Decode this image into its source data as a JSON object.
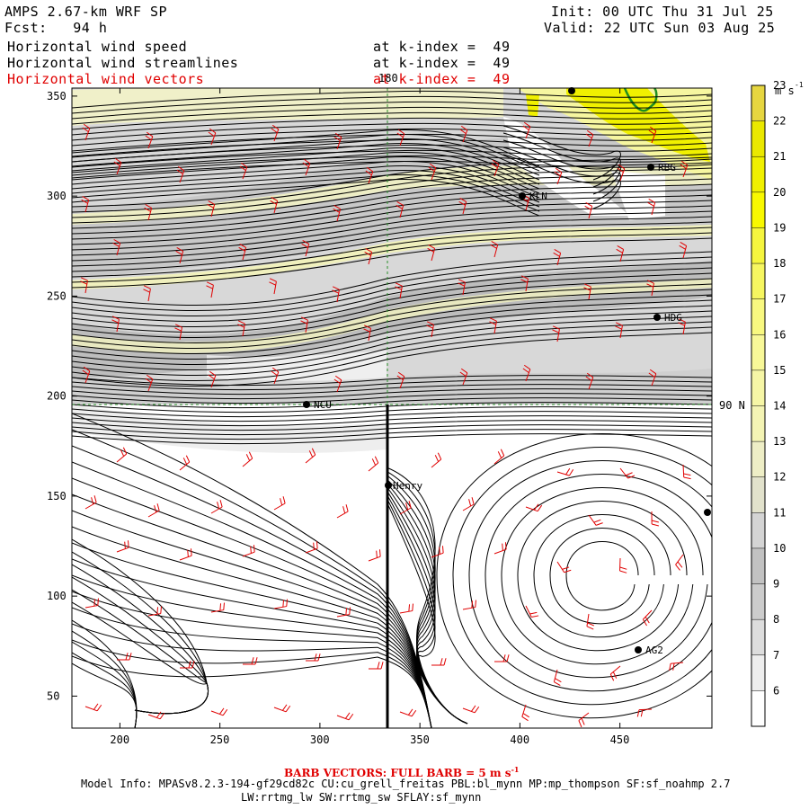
{
  "header": {
    "model": "AMPS 2.67-km WRF SP",
    "forecast": "Fcst:   94 h",
    "init": "Init: 00 UTC Thu 31 Jul 25",
    "valid": "Valid: 22 UTC Sun 03 Aug 25",
    "fields": [
      {
        "name": "Horizontal wind speed",
        "level": "at k-index =  49",
        "color": "#000000"
      },
      {
        "name": "Horizontal wind streamlines",
        "level": "at k-index =  49",
        "color": "#000000"
      },
      {
        "name": "Horizontal wind vectors",
        "level": "at k-index =  49",
        "color": "#e00000"
      }
    ]
  },
  "map": {
    "x_ticks": [
      "200",
      "250",
      "300",
      "350",
      "400",
      "450"
    ],
    "y_ticks": [
      "350",
      "300",
      "250",
      "200",
      "150",
      "100",
      "50"
    ],
    "meridian_label": "180",
    "parallel_label": "90 N",
    "stations": [
      {
        "id": "KLN",
        "label": "KLN"
      },
      {
        "id": "RBG",
        "label": "RBG"
      },
      {
        "id": "HDG",
        "label": "HDG"
      },
      {
        "id": "NCU",
        "label": "NCU"
      },
      {
        "id": "Henry",
        "label": "Henry"
      },
      {
        "id": "AG2",
        "label": "AG2"
      }
    ],
    "colors": {
      "streamline": "#000000",
      "barb": "#e00000",
      "grid": "#2a8f2a",
      "coast": "#1f8f1f"
    }
  },
  "colorbar": {
    "unit": "m s",
    "unit_exp": "-1",
    "levels": [
      "6",
      "7",
      "8",
      "9",
      "10",
      "11",
      "12",
      "13",
      "14",
      "15",
      "16",
      "17",
      "18",
      "19",
      "20",
      "21",
      "22",
      "23"
    ],
    "colors": [
      "#ffffff",
      "#eeeeee",
      "#dddddd",
      "#cccccc",
      "#c2c2c2",
      "#d4d4d4",
      "#e2e2cc",
      "#eeeec6",
      "#f4f4b4",
      "#f6f6a6",
      "#f8f898",
      "#f8f880",
      "#f6f660",
      "#f5f53e",
      "#f8f800",
      "#f0f000",
      "#eae800",
      "#e6d640"
    ]
  },
  "footer": {
    "barb_note": "BARB VECTORS:  FULL BARB = 5 m s",
    "barb_exp": "-1",
    "model_info_1": "Model Info: MPASv8.2.3-194-gf29cd82c CU:cu_grell_freitas PBL:bl_mynn MP:mp_thompson SF:sf_noahmp 2.7",
    "model_info_2": "LW:rrtmg_lw SW:rrtmg_sw SFLAY:sf_mynn"
  }
}
